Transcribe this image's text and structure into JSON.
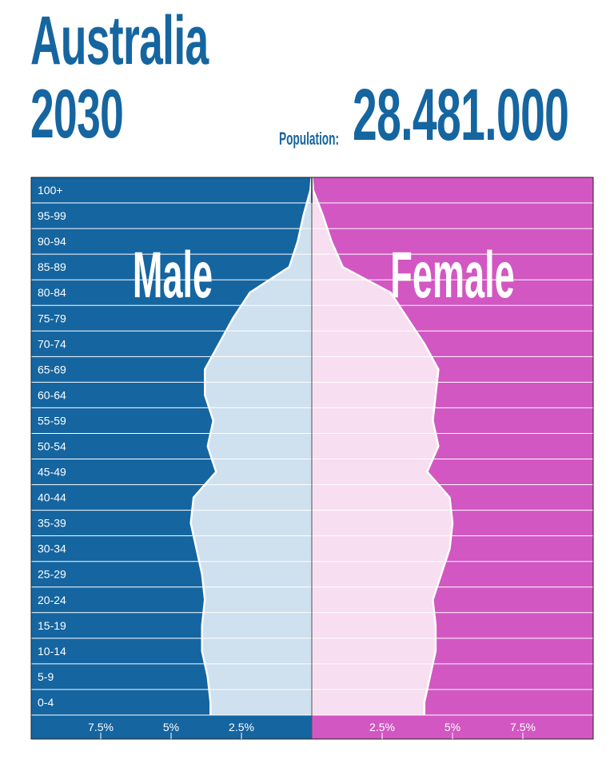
{
  "header": {
    "country": "Australia",
    "year": "2030",
    "population_label": "Population:",
    "population_value": "28.481.000"
  },
  "colors": {
    "male": "#1565a0",
    "male_fill": "#cfe0ee",
    "female": "#d257c2",
    "female_fill": "#f7def0",
    "title": "#1565a0"
  },
  "chart_data": {
    "type": "area",
    "title": "",
    "xlabel": "",
    "ylabel": "",
    "age_groups": [
      "100+",
      "95-99",
      "90-94",
      "85-89",
      "80-84",
      "75-79",
      "70-74",
      "65-69",
      "60-64",
      "55-59",
      "50-54",
      "45-49",
      "40-44",
      "35-39",
      "30-34",
      "25-29",
      "20-24",
      "15-19",
      "10-14",
      "5-9",
      "0-4"
    ],
    "series": [
      {
        "name": "Male",
        "values": [
          0.05,
          0.3,
          0.5,
          0.8,
          2.2,
          2.8,
          3.3,
          3.8,
          3.8,
          3.5,
          3.7,
          3.4,
          4.2,
          4.3,
          4.1,
          3.9,
          3.8,
          3.9,
          3.9,
          3.7,
          3.6
        ]
      },
      {
        "name": "Female",
        "values": [
          0.05,
          0.4,
          0.7,
          1.1,
          2.8,
          3.4,
          4.0,
          4.5,
          4.4,
          4.3,
          4.5,
          4.1,
          4.9,
          5.0,
          4.9,
          4.6,
          4.3,
          4.4,
          4.4,
          4.2,
          4.0
        ]
      }
    ],
    "x_ticks_male": [
      "7.5%",
      "5%",
      "2.5%"
    ],
    "x_ticks_female": [
      "2.5%",
      "5%",
      "7.5%"
    ],
    "xlim": [
      0,
      10
    ],
    "grid": true,
    "sex_labels": {
      "male": "Male",
      "female": "Female"
    }
  }
}
